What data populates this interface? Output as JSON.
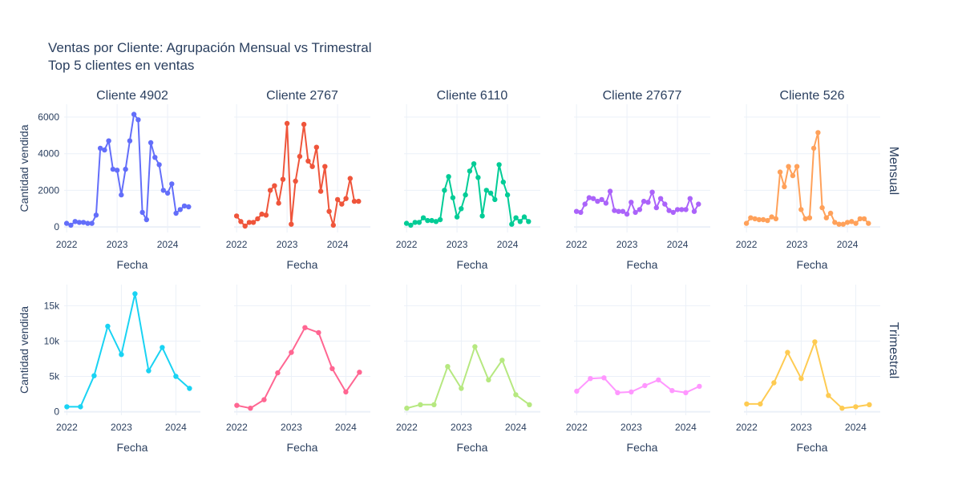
{
  "title": "Ventas por Cliente: Agrupación Mensual vs Trimestral",
  "subtitle": "Top 5 clientes en ventas",
  "colors": {
    "text": "#2a3f5f",
    "grid": "#ebf0f8",
    "zeroline": "#ebf0f8"
  },
  "chart_data": [
    {
      "type": "line",
      "row": "Mensual",
      "panels": [
        {
          "title": "Cliente 4902",
          "color": "#636efa",
          "xlabel": "Fecha",
          "ylabel": "Cantidad vendida",
          "x_ticks": [
            "2022",
            "2023",
            "2024"
          ],
          "y_ticks": [
            "0",
            "2000",
            "4000",
            "6000"
          ],
          "ylim": [
            -300,
            6700
          ],
          "xlim": [
            -0.05,
            2.65
          ],
          "x": [
            0,
            0.083,
            0.167,
            0.25,
            0.333,
            0.417,
            0.5,
            0.583,
            0.667,
            0.75,
            0.833,
            0.917,
            1,
            1.083,
            1.167,
            1.25,
            1.333,
            1.417,
            1.5,
            1.583,
            1.667,
            1.75,
            1.833,
            1.917,
            2,
            2.083,
            2.167,
            2.25,
            2.333,
            2.417
          ],
          "y": [
            200,
            100,
            300,
            250,
            250,
            200,
            200,
            650,
            4300,
            4200,
            4700,
            3150,
            3100,
            1750,
            3150,
            4700,
            6150,
            5850,
            800,
            400,
            4600,
            3800,
            3400,
            2000,
            1850,
            2350,
            750,
            950,
            1150,
            1100
          ]
        },
        {
          "title": "Cliente 2767",
          "color": "#ef553b",
          "xlabel": "Fecha",
          "ylabel": "",
          "x_ticks": [
            "2022",
            "2023",
            "2024"
          ],
          "y_ticks": [],
          "ylim": [
            -300,
            6700
          ],
          "xlim": [
            -0.05,
            2.65
          ],
          "x": [
            0,
            0.083,
            0.167,
            0.25,
            0.333,
            0.417,
            0.5,
            0.583,
            0.667,
            0.75,
            0.833,
            0.917,
            1,
            1.083,
            1.167,
            1.25,
            1.333,
            1.417,
            1.5,
            1.583,
            1.667,
            1.75,
            1.833,
            1.917,
            2,
            2.083,
            2.167,
            2.25,
            2.333,
            2.417
          ],
          "y": [
            600,
            300,
            50,
            250,
            250,
            450,
            700,
            650,
            2000,
            2250,
            1300,
            2600,
            5650,
            150,
            2500,
            3850,
            5600,
            3600,
            3300,
            4350,
            1950,
            3300,
            850,
            100,
            1500,
            1250,
            1550,
            2650,
            1400,
            1400
          ]
        },
        {
          "title": "Cliente 6110",
          "color": "#00cc96",
          "xlabel": "Fecha",
          "ylabel": "",
          "x_ticks": [
            "2022",
            "2023",
            "2024"
          ],
          "y_ticks": [],
          "ylim": [
            -300,
            6700
          ],
          "xlim": [
            -0.05,
            2.65
          ],
          "x": [
            0,
            0.083,
            0.167,
            0.25,
            0.333,
            0.417,
            0.5,
            0.583,
            0.667,
            0.75,
            0.833,
            0.917,
            1,
            1.083,
            1.167,
            1.25,
            1.333,
            1.417,
            1.5,
            1.583,
            1.667,
            1.75,
            1.833,
            1.917,
            2,
            2.083,
            2.167,
            2.25,
            2.333,
            2.417
          ],
          "y": [
            200,
            100,
            250,
            250,
            500,
            350,
            350,
            300,
            400,
            2000,
            2750,
            1600,
            550,
            1000,
            1750,
            3050,
            3450,
            2700,
            600,
            2000,
            1850,
            1500,
            3400,
            2450,
            1750,
            150,
            500,
            300,
            550,
            300
          ]
        },
        {
          "title": "Cliente 27677",
          "color": "#ab63fa",
          "xlabel": "Fecha",
          "ylabel": "",
          "x_ticks": [
            "2022",
            "2023",
            "2024"
          ],
          "y_ticks": [],
          "ylim": [
            -300,
            6700
          ],
          "xlim": [
            -0.05,
            2.65
          ],
          "x": [
            0,
            0.083,
            0.167,
            0.25,
            0.333,
            0.417,
            0.5,
            0.583,
            0.667,
            0.75,
            0.833,
            0.917,
            1,
            1.083,
            1.167,
            1.25,
            1.333,
            1.417,
            1.5,
            1.583,
            1.667,
            1.75,
            1.833,
            1.917,
            2,
            2.083,
            2.167,
            2.25,
            2.333,
            2.417
          ],
          "y": [
            850,
            800,
            1250,
            1600,
            1550,
            1400,
            1500,
            1300,
            1950,
            900,
            850,
            850,
            700,
            1350,
            800,
            950,
            1400,
            1350,
            1900,
            1050,
            1550,
            1250,
            900,
            800,
            950,
            950,
            950,
            1550,
            850,
            1250
          ]
        },
        {
          "title": "Cliente 526",
          "color": "#ffa15a",
          "xlabel": "Fecha",
          "ylabel": "",
          "x_ticks": [
            "2022",
            "2023",
            "2024"
          ],
          "y_ticks": [],
          "ylim": [
            -300,
            6700
          ],
          "xlim": [
            -0.05,
            2.65
          ],
          "x": [
            0,
            0.083,
            0.167,
            0.25,
            0.333,
            0.417,
            0.5,
            0.583,
            0.667,
            0.75,
            0.833,
            0.917,
            1,
            1.083,
            1.167,
            1.25,
            1.333,
            1.417,
            1.5,
            1.583,
            1.667,
            1.75,
            1.833,
            1.917,
            2,
            2.083,
            2.167,
            2.25,
            2.333,
            2.417
          ],
          "y": [
            200,
            500,
            450,
            400,
            400,
            350,
            550,
            450,
            3000,
            2200,
            3300,
            2800,
            3300,
            950,
            450,
            500,
            4300,
            5150,
            1050,
            500,
            750,
            250,
            150,
            150,
            250,
            300,
            200,
            450,
            450,
            200
          ]
        }
      ]
    },
    {
      "type": "line",
      "row": "Trimestral",
      "panels": [
        {
          "title": "",
          "color": "#19d3f3",
          "xlabel": "Fecha",
          "ylabel": "Cantidad vendida",
          "x_ticks": [
            "2022",
            "2023",
            "2024"
          ],
          "y_ticks": [
            "0",
            "5k",
            "10k",
            "15k"
          ],
          "ylim": [
            -500,
            18000
          ],
          "xlim": [
            -0.05,
            2.45
          ],
          "x": [
            0,
            0.25,
            0.5,
            0.75,
            1,
            1.25,
            1.5,
            1.75,
            2,
            2.25
          ],
          "y": [
            700,
            700,
            5100,
            12100,
            8100,
            16700,
            5800,
            9100,
            5000,
            3300
          ]
        },
        {
          "title": "",
          "color": "#ff6692",
          "xlabel": "Fecha",
          "ylabel": "",
          "x_ticks": [
            "2022",
            "2023",
            "2024"
          ],
          "y_ticks": [],
          "ylim": [
            -500,
            18000
          ],
          "xlim": [
            -0.05,
            2.45
          ],
          "x": [
            0,
            0.25,
            0.5,
            0.75,
            1,
            1.25,
            1.5,
            1.75,
            2,
            2.25
          ],
          "y": [
            900,
            500,
            1700,
            5500,
            8400,
            11900,
            11200,
            6100,
            2800,
            5600
          ]
        },
        {
          "title": "",
          "color": "#b6e880",
          "xlabel": "Fecha",
          "ylabel": "",
          "x_ticks": [
            "2022",
            "2023",
            "2024"
          ],
          "y_ticks": [],
          "ylim": [
            -500,
            18000
          ],
          "xlim": [
            -0.05,
            2.45
          ],
          "x": [
            0,
            0.25,
            0.5,
            0.75,
            1,
            1.25,
            1.5,
            1.75,
            2,
            2.25
          ],
          "y": [
            500,
            1000,
            1000,
            6400,
            3300,
            9200,
            4500,
            7300,
            2400,
            1000
          ]
        },
        {
          "title": "",
          "color": "#ff97ff",
          "xlabel": "Fecha",
          "ylabel": "",
          "x_ticks": [
            "2022",
            "2023",
            "2024"
          ],
          "y_ticks": [],
          "ylim": [
            -500,
            18000
          ],
          "xlim": [
            -0.05,
            2.45
          ],
          "x": [
            0,
            0.25,
            0.5,
            0.75,
            1,
            1.25,
            1.5,
            1.75,
            2,
            2.25
          ],
          "y": [
            2900,
            4700,
            4800,
            2700,
            2800,
            3700,
            4500,
            3000,
            2700,
            3600
          ]
        },
        {
          "title": "",
          "color": "#fecb52",
          "xlabel": "Fecha",
          "ylabel": "",
          "x_ticks": [
            "2022",
            "2023",
            "2024"
          ],
          "y_ticks": [],
          "ylim": [
            -500,
            18000
          ],
          "xlim": [
            -0.05,
            2.45
          ],
          "x": [
            0,
            0.25,
            0.5,
            0.75,
            1,
            1.25,
            1.5,
            1.75,
            2,
            2.25
          ],
          "y": [
            1100,
            1100,
            4100,
            8400,
            4700,
            9900,
            2300,
            500,
            700,
            1000
          ]
        }
      ]
    }
  ]
}
